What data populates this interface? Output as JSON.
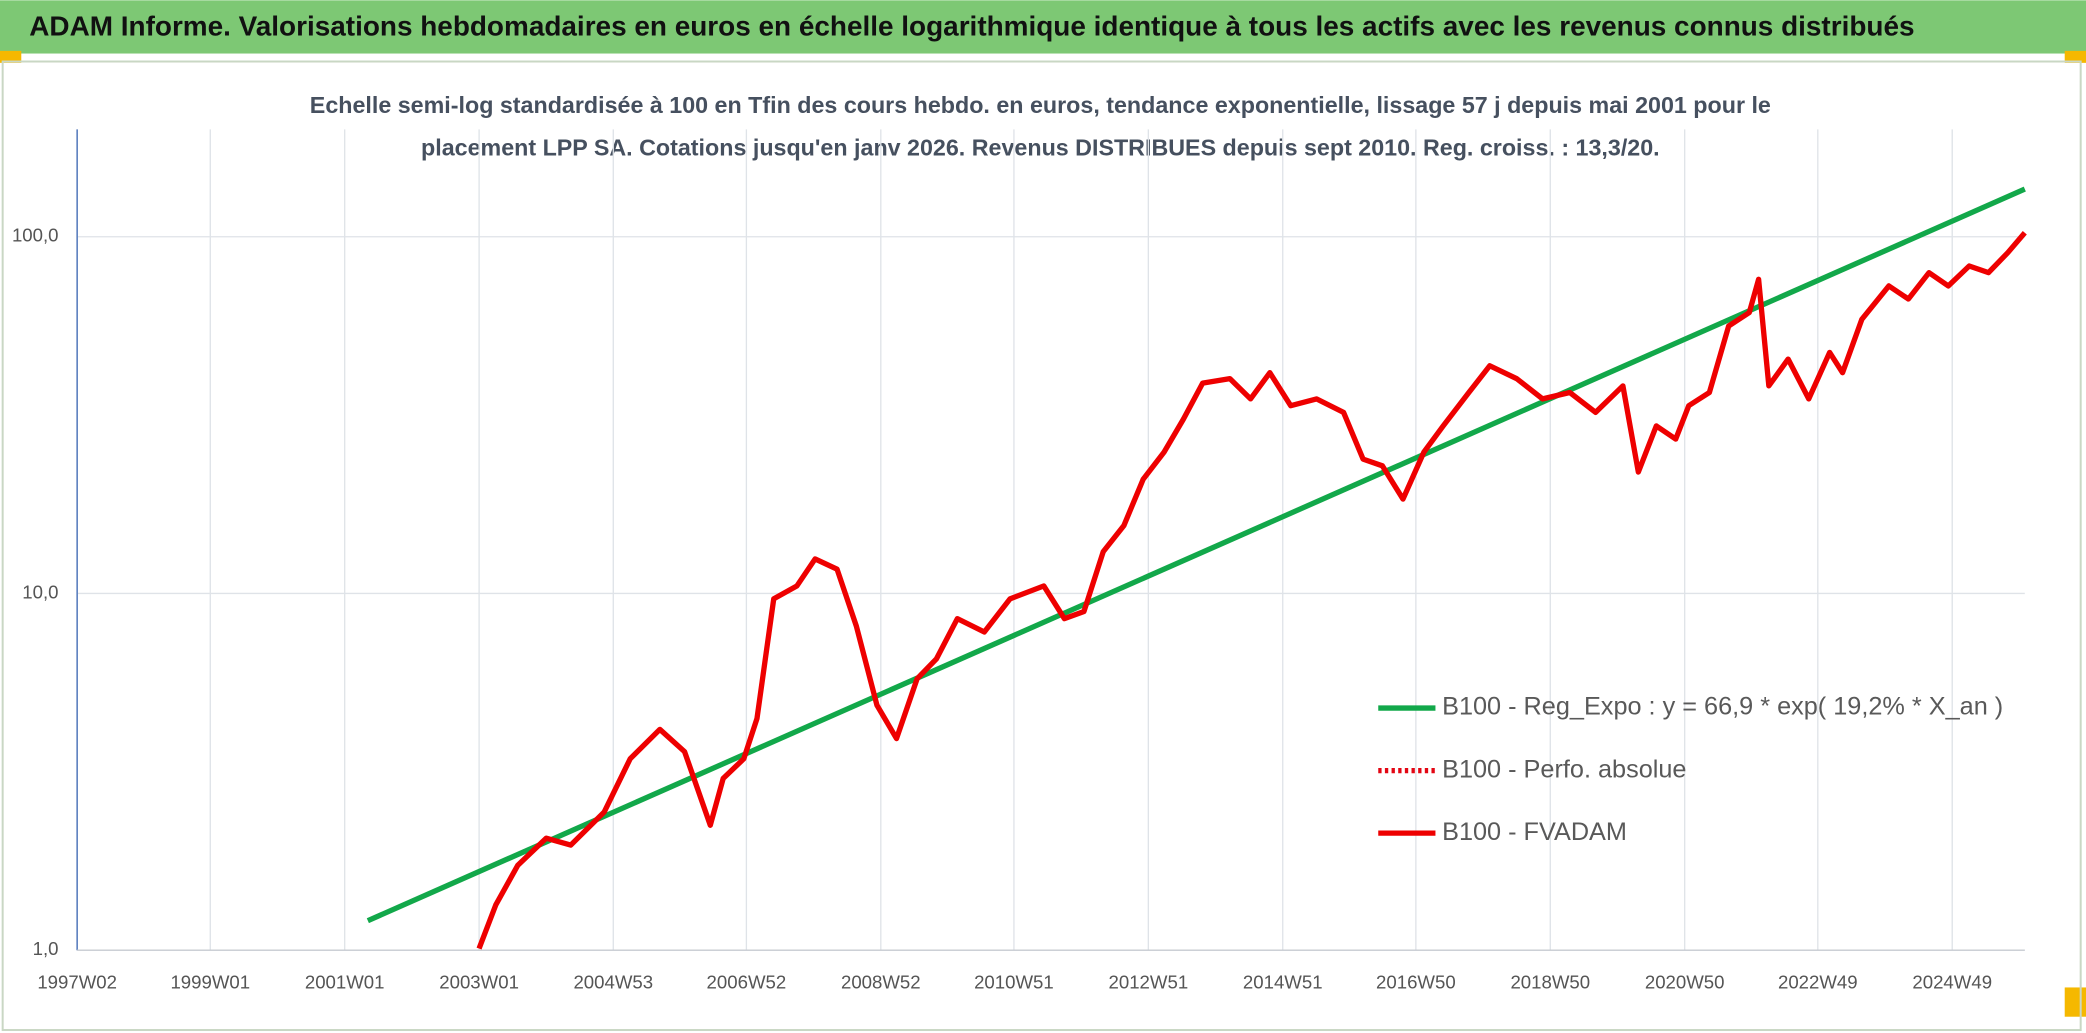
{
  "header": {
    "title": "ADAM Informe. Valorisations hebdomadaires en euros en échelle logarithmique identique à tous les actifs avec les revenus connus distribués"
  },
  "chart_data": {
    "type": "line",
    "title": [
      "Echelle semi-log standardisée à 100 en Tfin des cours hebdo. en euros, tendance exponentielle, lissage 57 j depuis mai 2001 pour le",
      "placement LPP SA. Cotations jusqu'en janv 2026. Revenus DISTRIBUES depuis sept 2010. Reg. croiss. : 13,3/20."
    ],
    "log_y": true,
    "grid": true,
    "legend": "lower right",
    "xlim": [
      "1997W02",
      "2026W01"
    ],
    "xticks": [
      "1997W02",
      "1999W01",
      "2001W01",
      "2003W01",
      "2004W53",
      "2006W52",
      "2008W52",
      "2010W51",
      "2012W51",
      "2014W51",
      "2016W50",
      "2018W50",
      "2020W50",
      "2022W49",
      "2024W49"
    ],
    "ylim": [
      1,
      200
    ],
    "yticks": [
      {
        "value": 1,
        "label": "1,0"
      },
      {
        "value": 10,
        "label": "10,0"
      },
      {
        "value": 100,
        "label": "100,0"
      }
    ],
    "series": [
      {
        "name": "B100 - Reg_Expo : y = 66,9 * exp( 19,2% *  X_an )",
        "color": "#12a84a",
        "dash": "solid",
        "x": [
          "2001W19",
          "2026W01"
        ],
        "values": [
          1.21,
          136
        ]
      },
      {
        "name": "B100 - Perfo. absolue",
        "color": "#e30613",
        "dash": "dotted",
        "x": [],
        "values": []
      },
      {
        "name": "B100 - FVADAM",
        "color": "#ee0000",
        "dash": "solid",
        "x": [
          "2003W01",
          "2003W14",
          "2003W31",
          "2004W01",
          "2004W20",
          "2004W46",
          "2005W14",
          "2005W37",
          "2006W04",
          "2006W24",
          "2006W34",
          "2006W50",
          "2007W08",
          "2007W21",
          "2007W39",
          "2008W01",
          "2008W18",
          "2008W33",
          "2008W49",
          "2009W12",
          "2009W28",
          "2009W43",
          "2010W07",
          "2010W28",
          "2010W48",
          "2011W22",
          "2011W38",
          "2012W01",
          "2012W16",
          "2012W32",
          "2012W47",
          "2013W11",
          "2013W26",
          "2013W41",
          "2014W10",
          "2014W26",
          "2014W41",
          "2015W05",
          "2015W25",
          "2015W46",
          "2016W09",
          "2016W24",
          "2016W40",
          "2017W04",
          "2017W19",
          "2017W39",
          "2018W03",
          "2018W24",
          "2018W44",
          "2019W13",
          "2019W33",
          "2020W02",
          "2020W14",
          "2020W28",
          "2020W43",
          "2021W01",
          "2021W17",
          "2021W32",
          "2021W48",
          "2022W03",
          "2022W11",
          "2022W26",
          "2022W42",
          "2023W06",
          "2023W16",
          "2023W31",
          "2023W52",
          "2024W15",
          "2024W31",
          "2024W46",
          "2025W10",
          "2025W25",
          "2025W40",
          "2026W01"
        ],
        "values": [
          1.01,
          1.34,
          1.73,
          2.06,
          1.97,
          2.44,
          3.44,
          4.16,
          3.6,
          2.24,
          3.03,
          3.44,
          4.46,
          9.66,
          10.5,
          12.5,
          11.7,
          8.1,
          4.86,
          3.92,
          5.77,
          6.56,
          8.5,
          7.8,
          9.66,
          10.5,
          8.5,
          8.9,
          13.1,
          15.5,
          20.9,
          24.9,
          30.8,
          38.9,
          40.0,
          35.1,
          41.6,
          33.6,
          35.1,
          32.2,
          23.8,
          22.8,
          18.4,
          24.9,
          29.5,
          36.6,
          43.5,
          40.0,
          35.1,
          36.6,
          32.2,
          38.2,
          21.9,
          29.5,
          27.1,
          33.6,
          36.6,
          56.2,
          61.3,
          76.0,
          38.2,
          45.4,
          35.1,
          47.4,
          41.6,
          58.7,
          72.8,
          66.9,
          79.3,
          72.8,
          82.8,
          79.3,
          90.2,
          102.6
        ]
      }
    ]
  }
}
